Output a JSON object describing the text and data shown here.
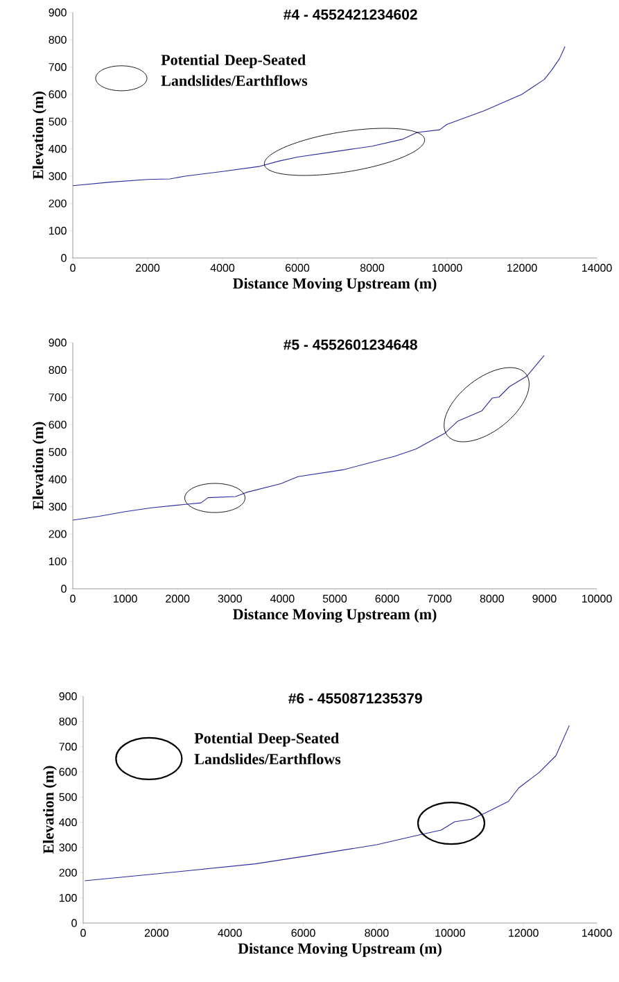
{
  "chart_data": [
    {
      "type": "line",
      "title": "#4 - 4552421234602",
      "xlabel": "Distance Moving Upstream (m)",
      "ylabel": "Elevation (m)",
      "annotations": [
        "Potential Deep-Seated Landslides/Earthflows"
      ],
      "xlim": [
        0,
        14000
      ],
      "xticks": [
        0,
        2000,
        4000,
        6000,
        8000,
        10000,
        12000,
        14000
      ],
      "ylim": [
        0,
        900
      ],
      "yticks": [
        0,
        100,
        200,
        300,
        400,
        500,
        600,
        700,
        800,
        900
      ],
      "series": [
        {
          "color": "#2a2aa0",
          "x": [
            0,
            1000,
            2000,
            2600,
            3000,
            4000,
            5000,
            5500,
            6000,
            7000,
            8000,
            8800,
            9200,
            9800,
            10000,
            11000,
            12000,
            12600,
            12800,
            13000,
            13150
          ],
          "values": [
            265,
            278,
            288,
            290,
            300,
            317,
            336,
            355,
            370,
            390,
            410,
            435,
            460,
            470,
            490,
            540,
            600,
            655,
            690,
            730,
            775
          ]
        }
      ]
    },
    {
      "type": "line",
      "title": "#5 - 4552601234648",
      "xlabel": "Distance Moving Upstream (m)",
      "ylabel": "Elevation (m)",
      "xlim": [
        0,
        10000
      ],
      "xticks": [
        0,
        1000,
        2000,
        3000,
        4000,
        5000,
        6000,
        7000,
        8000,
        9000,
        10000
      ],
      "ylim": [
        0,
        900
      ],
      "yticks": [
        0,
        100,
        200,
        300,
        400,
        500,
        600,
        700,
        800,
        900
      ],
      "series": [
        {
          "color": "#2a2aa0",
          "x": [
            0,
            500,
            1000,
            1500,
            2116,
            2447,
            2579,
            3108,
            3307,
            3968,
            4299,
            5159,
            6151,
            6548,
            7110,
            7341,
            7804,
            8003,
            8135,
            8333,
            8664,
            8995
          ],
          "values": [
            251,
            265,
            282,
            296,
            308,
            314,
            333,
            337,
            352,
            384,
            410,
            435,
            485,
            511,
            570,
            612,
            650,
            697,
            701,
            739,
            777,
            853
          ]
        }
      ]
    },
    {
      "type": "line",
      "title": "#6 - 4550871235379",
      "xlabel": "Distance Moving Upstream (m)",
      "ylabel": "Elevation (m)",
      "annotations": [
        "Potential Deep-Seated Landslides/Earthflows"
      ],
      "xlim": [
        0,
        14000
      ],
      "xticks": [
        0,
        2000,
        4000,
        6000,
        8000,
        10000,
        12000,
        14000
      ],
      "ylim": [
        0,
        900
      ],
      "yticks": [
        0,
        100,
        200,
        300,
        400,
        500,
        600,
        700,
        800,
        900
      ],
      "series": [
        {
          "color": "#2a2aa0",
          "x": [
            43,
            2390,
            4691,
            6165,
            8005,
            9108,
            9755,
            10123,
            10580,
            10950,
            11594,
            11870,
            12422,
            12884,
            13250
          ],
          "values": [
            168,
            201,
            235,
            268,
            311,
            348,
            369,
            402,
            412,
            436,
            483,
            536,
            597,
            664,
            784
          ]
        }
      ]
    }
  ]
}
